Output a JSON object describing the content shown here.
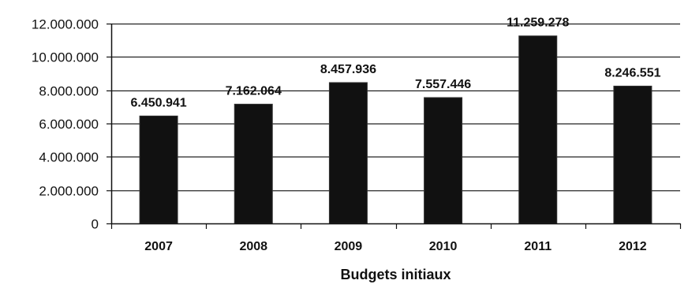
{
  "chart_data": {
    "type": "bar",
    "title": "",
    "xlabel": "Budgets initiaux",
    "ylabel": "",
    "categories": [
      "2007",
      "2008",
      "2009",
      "2010",
      "2011",
      "2012"
    ],
    "values": [
      6450941,
      7162064,
      8457936,
      7557446,
      11259278,
      8246551
    ],
    "data_labels": [
      "6.450.941",
      "7.162.064",
      "8.457.936",
      "7.557.446",
      "11.259.278",
      "8.246.551"
    ],
    "y_ticks": [
      0,
      2000000,
      4000000,
      6000000,
      8000000,
      10000000,
      12000000
    ],
    "y_tick_labels": [
      "0",
      "2.000.000",
      "4.000.000",
      "6.000.000",
      "8.000.000",
      "10.000.000",
      "12.000.000"
    ],
    "ylim": [
      0,
      12000000
    ],
    "grid": true,
    "legend": "none",
    "colors": {
      "bar": "#111111",
      "gridline": "#222222",
      "axis": "#111111",
      "text": "#111111",
      "background": "#ffffff"
    }
  }
}
